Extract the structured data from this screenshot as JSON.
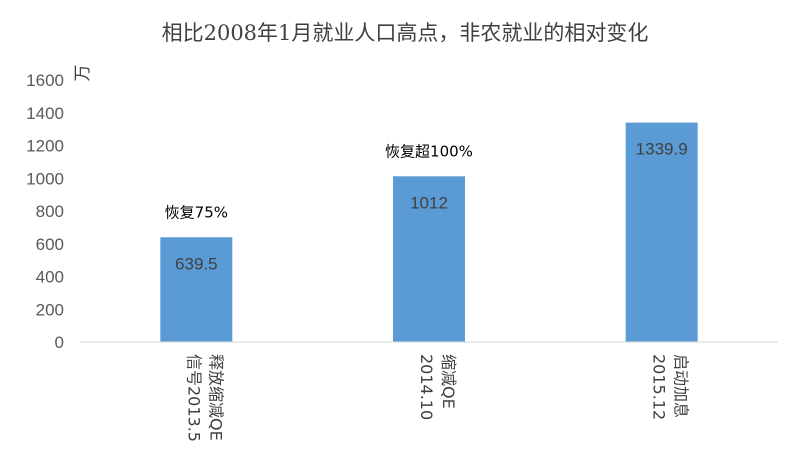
{
  "chart_data": {
    "type": "bar",
    "title": "相比2008年1月就业人口高点，非农就业的相对变化",
    "ylabel": "万",
    "xlabel": "",
    "ylim": [
      0,
      1600
    ],
    "yticks": [
      0,
      200,
      400,
      600,
      800,
      1000,
      1200,
      1400,
      1600
    ],
    "grid": false,
    "categories": [
      "释放缩减QE信号2013.5",
      "缩减QE 2014.10",
      "启动加息 2015.12"
    ],
    "category_lines": [
      [
        "释放缩减QE",
        "信号2013.5"
      ],
      [
        "缩减QE",
        "2014.10"
      ],
      [
        "启动加息",
        "2015.12"
      ]
    ],
    "values": [
      639.5,
      1012,
      1339.9
    ],
    "data_labels": [
      "639.5",
      "1012",
      "1339.9"
    ],
    "annotations": [
      "恢复75%",
      "恢复超100%",
      ""
    ],
    "colors": {
      "bar": "#5b9bd5",
      "axis": "#d9d9d9"
    }
  }
}
